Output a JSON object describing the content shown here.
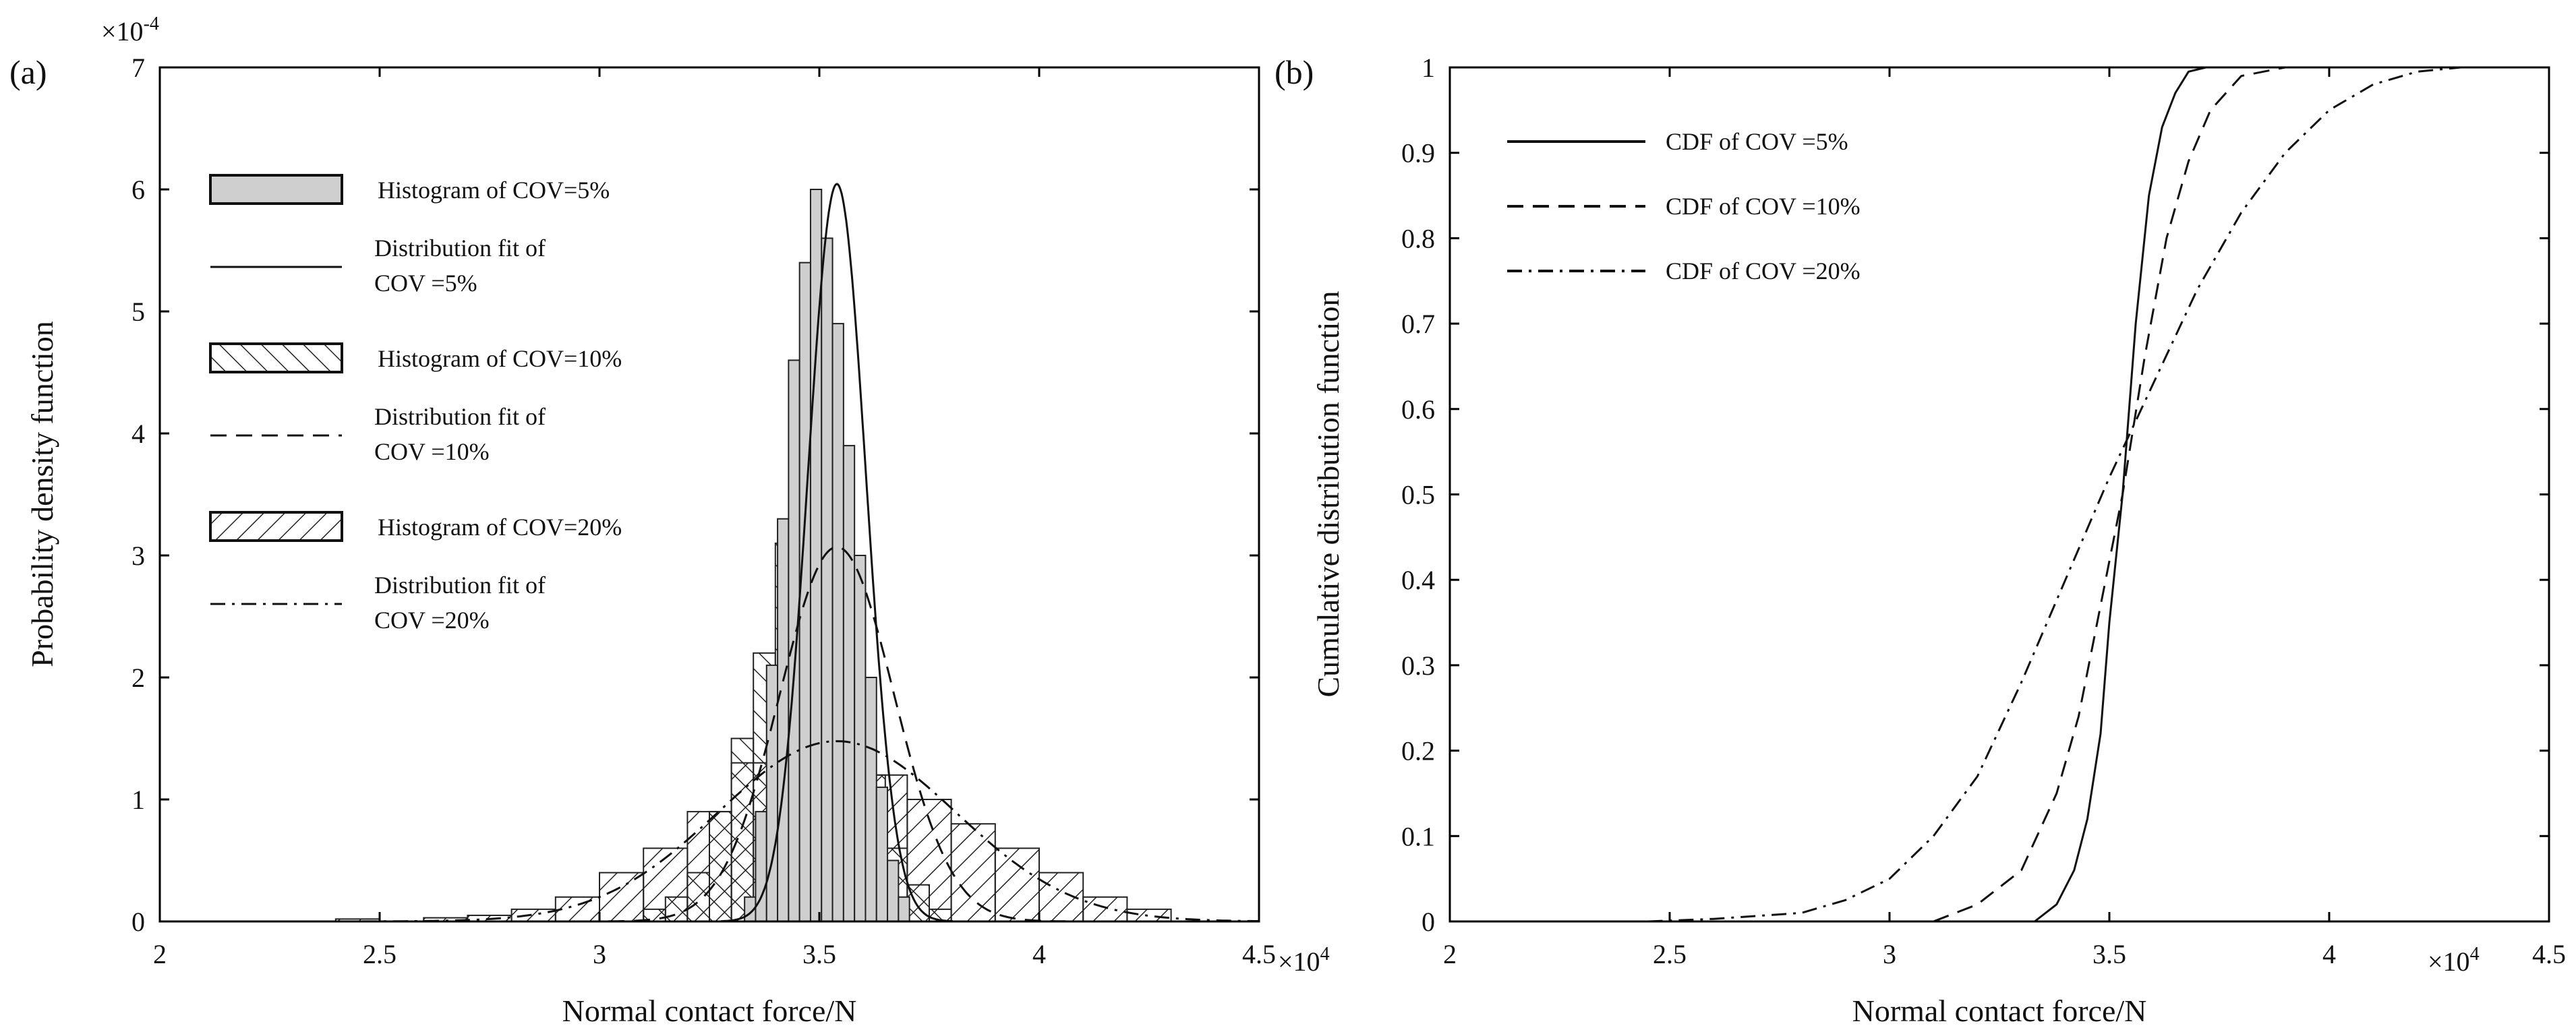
{
  "chart_data": [
    {
      "type": "bar",
      "panel_label": "(a)",
      "xlabel": "Normal contact force/N",
      "ylabel": "Probability density function",
      "x_multiplier": "×10",
      "x_multiplier_exp": "4",
      "y_multiplier": "×10",
      "y_multiplier_exp": "-4",
      "xlim": [
        2.0,
        4.5
      ],
      "ylim": [
        0,
        7
      ],
      "x_ticks": [
        "2",
        "2.5",
        "3",
        "3.5",
        "4",
        "4.5"
      ],
      "y_ticks": [
        "0",
        "1",
        "2",
        "3",
        "4",
        "5",
        "6",
        "7"
      ],
      "grid": false,
      "legend_position": "upper-left",
      "legend": [
        {
          "kind": "hist",
          "pattern": "gray",
          "lines": [
            "Histogram of COV=5%"
          ]
        },
        {
          "kind": "line",
          "dash": "solid",
          "lines": [
            "Distribution fit of",
            "COV =5%"
          ]
        },
        {
          "kind": "hist",
          "pattern": "diag",
          "lines": [
            "Histogram of COV=10%"
          ]
        },
        {
          "kind": "line",
          "dash": "dashed",
          "lines": [
            "Distribution fit of",
            "COV =10%"
          ]
        },
        {
          "kind": "hist",
          "pattern": "diag2",
          "lines": [
            "Histogram of COV=20%"
          ]
        },
        {
          "kind": "line",
          "dash": "dashdot",
          "lines": [
            "Distribution fit of",
            "COV =20%"
          ]
        }
      ],
      "histograms": [
        {
          "name": "Histogram of COV=5%",
          "pattern": "gray",
          "bin_start": 3.33,
          "bin_width": 0.025,
          "values": [
            0.2,
            0.9,
            2.1,
            3.3,
            4.6,
            5.4,
            6.0,
            5.6,
            4.9,
            3.9,
            3.0,
            2.0,
            1.1,
            0.5,
            0.2
          ]
        },
        {
          "name": "Histogram of COV=10%",
          "pattern": "diag",
          "bin_start": 3.1,
          "bin_width": 0.05,
          "values": [
            0.1,
            0.2,
            0.4,
            0.9,
            1.5,
            2.2,
            3.1,
            3.2,
            2.6,
            2.0,
            1.2,
            0.6,
            0.3,
            0.1
          ]
        },
        {
          "name": "Histogram of COV=20%",
          "pattern": "diag2",
          "bin_start": 2.4,
          "bin_width": 0.1,
          "values": [
            0.02,
            0.0,
            0.03,
            0.05,
            0.1,
            0.2,
            0.4,
            0.6,
            0.9,
            1.3,
            1.5,
            1.4,
            1.2,
            1.0,
            0.8,
            0.6,
            0.4,
            0.2,
            0.1
          ]
        }
      ],
      "fits": [
        {
          "name": "COV =5%",
          "dash": "solid",
          "mean": 3.54,
          "sd": 0.066
        },
        {
          "name": "COV =10%",
          "dash": "dashed",
          "mean": 3.54,
          "sd": 0.13
        },
        {
          "name": "COV =20%",
          "dash": "dashdot",
          "mean": 3.54,
          "sd": 0.27
        }
      ]
    },
    {
      "type": "line",
      "panel_label": "(b)",
      "xlabel": "Normal contact force/N",
      "ylabel": "Cumulative distribution function",
      "x_multiplier": "×10",
      "x_multiplier_exp": "4",
      "xlim": [
        2.0,
        4.5
      ],
      "ylim": [
        0,
        1
      ],
      "x_ticks": [
        "2",
        "2.5",
        "3",
        "3.5",
        "4",
        "4.5"
      ],
      "y_ticks": [
        "0",
        "0.1",
        "0.2",
        "0.3",
        "0.4",
        "0.5",
        "0.6",
        "0.7",
        "0.8",
        "0.9",
        "1"
      ],
      "grid": false,
      "legend_position": "upper-left",
      "series": [
        {
          "name": "CDF of COV =5%",
          "dash": "solid",
          "x": [
            3.33,
            3.38,
            3.42,
            3.45,
            3.48,
            3.5,
            3.53,
            3.56,
            3.59,
            3.62,
            3.65,
            3.68,
            3.72
          ],
          "y": [
            0.0,
            0.02,
            0.06,
            0.12,
            0.22,
            0.35,
            0.5,
            0.7,
            0.85,
            0.93,
            0.97,
            0.995,
            1.0
          ]
        },
        {
          "name": "CDF of COV =10%",
          "dash": "dashed",
          "x": [
            3.1,
            3.2,
            3.3,
            3.38,
            3.43,
            3.48,
            3.53,
            3.58,
            3.63,
            3.68,
            3.73,
            3.8,
            3.9
          ],
          "y": [
            0.0,
            0.02,
            0.06,
            0.15,
            0.24,
            0.37,
            0.5,
            0.66,
            0.8,
            0.89,
            0.95,
            0.99,
            1.0
          ]
        },
        {
          "name": "CDF of COV =20%",
          "dash": "dashdot",
          "x": [
            2.45,
            2.6,
            2.8,
            2.9,
            3.0,
            3.1,
            3.2,
            3.3,
            3.4,
            3.5,
            3.6,
            3.7,
            3.8,
            3.9,
            4.0,
            4.1,
            4.2,
            4.3
          ],
          "y": [
            0.0,
            0.003,
            0.01,
            0.025,
            0.05,
            0.1,
            0.17,
            0.28,
            0.4,
            0.52,
            0.63,
            0.74,
            0.83,
            0.9,
            0.95,
            0.98,
            0.995,
            1.0
          ]
        }
      ]
    }
  ]
}
